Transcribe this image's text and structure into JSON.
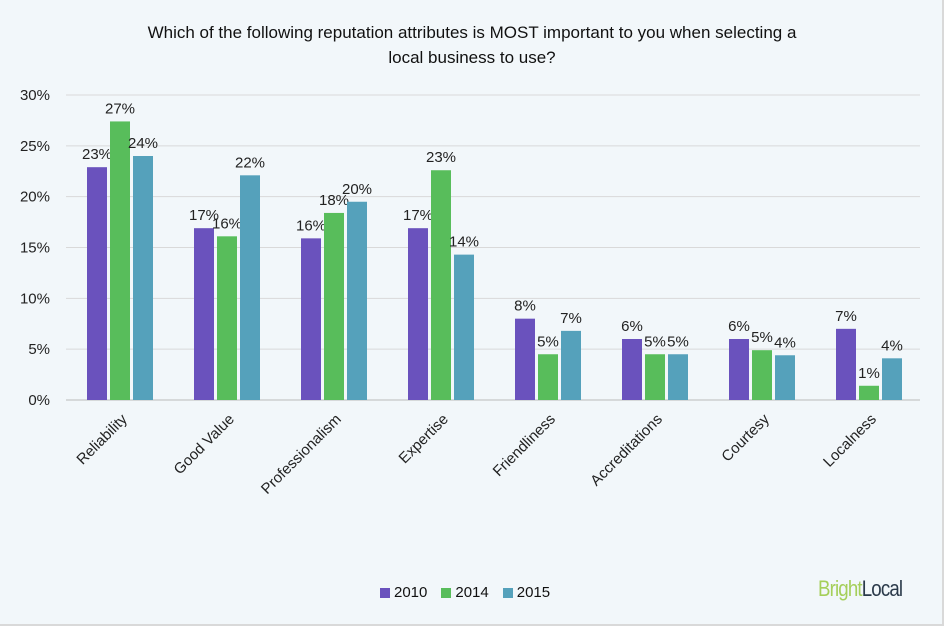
{
  "chart_data": {
    "type": "bar",
    "title": "Which of the following reputation attributes is MOST important to you when selecting a local business to use?",
    "categories": [
      "Reliability",
      "Good Value",
      "Professionalism",
      "Expertise",
      "Friendliness",
      "Accreditations",
      "Courtesy",
      "Localness"
    ],
    "series": [
      {
        "name": "2010",
        "color": "#6a52bd",
        "values": [
          22.9,
          16.9,
          15.9,
          16.9,
          8.0,
          6.0,
          6.0,
          7.0
        ],
        "labels": [
          "23%",
          "17%",
          "16%",
          "17%",
          "8%",
          "6%",
          "6%",
          "7%"
        ]
      },
      {
        "name": "2014",
        "color": "#58bd5b",
        "values": [
          27.4,
          16.1,
          18.4,
          22.6,
          4.5,
          4.5,
          4.9,
          1.4
        ],
        "labels": [
          "27%",
          "16%",
          "18%",
          "23%",
          "5%",
          "5%",
          "5%",
          "1%"
        ]
      },
      {
        "name": "2015",
        "color": "#55a1bb",
        "values": [
          24.0,
          22.1,
          19.5,
          14.3,
          6.8,
          4.5,
          4.4,
          4.1
        ],
        "labels": [
          "24%",
          "22%",
          "20%",
          "14%",
          "7%",
          "5%",
          "4%",
          "4%"
        ]
      }
    ],
    "yticks": [
      "0%",
      "5%",
      "10%",
      "15%",
      "20%",
      "25%",
      "30%"
    ],
    "ylim": [
      0,
      30
    ],
    "grid": true,
    "legend": "bottom"
  },
  "logo": {
    "part1": "Bright",
    "part2": "Local",
    "color1": "#a5cf5a",
    "color2": "#2b3a4a"
  }
}
